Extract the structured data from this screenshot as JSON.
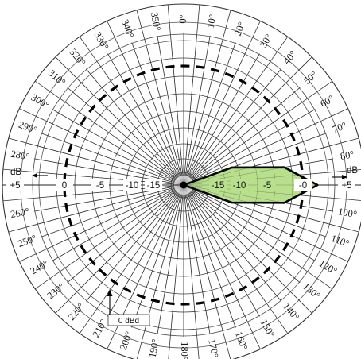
{
  "chart_data": {
    "type": "polar",
    "angle_ticks_deg": [
      0,
      10,
      20,
      30,
      40,
      50,
      60,
      70,
      80,
      90,
      100,
      110,
      120,
      130,
      140,
      150,
      160,
      170,
      180,
      190,
      200,
      210,
      220,
      230,
      240,
      250,
      260,
      270,
      280,
      290,
      300,
      310,
      320,
      330,
      340,
      350
    ],
    "angle_tick_labels": {
      "0": "0°",
      "10": "10°",
      "20": "20°",
      "30": "30°",
      "40": "40°",
      "50": "50°",
      "60": "60°",
      "70": "70°",
      "80": "80°",
      "100": "100°",
      "110": "110°",
      "120": "120°",
      "130": "130°",
      "140": "140°",
      "150": "150°",
      "160": "160°",
      "170": "170°",
      "180": "180°",
      "190": "190°",
      "200": "200°",
      "210": "210°",
      "220": "220°",
      "230": "230°",
      "240": "240°",
      "250": "250°",
      "260": "260°",
      "280": "280°",
      "290": "290°",
      "300": "300°",
      "310": "310°",
      "320": "320°",
      "330": "330°",
      "340": "340°",
      "350": "350°"
    },
    "radial_unit": "dB",
    "radial_range_db": [
      -20,
      5
    ],
    "radial_ticks_db": [
      5,
      0,
      -5,
      -10,
      -15
    ],
    "radial_tick_labels_left": [
      "+5",
      "0",
      "-5",
      "-10",
      "-15"
    ],
    "radial_tick_labels_right": [
      "-15",
      "-10",
      "-5",
      "-0",
      "+5"
    ],
    "reference_ring": {
      "db": 0,
      "label": "0 dBd",
      "style": "dashed"
    },
    "axis_unit_labels": {
      "left": "dB",
      "right": "dB"
    },
    "fill_color": "#b8e08c",
    "pattern_db": [
      [
        0,
        -20
      ],
      [
        10,
        -19
      ],
      [
        20,
        -17.8
      ],
      [
        30,
        -15.7
      ],
      [
        40,
        -12.9
      ],
      [
        50,
        -9.7
      ],
      [
        60,
        -6.2
      ],
      [
        70,
        -2.8
      ],
      [
        80,
        -0.7
      ],
      [
        90,
        0.6
      ],
      [
        100,
        -0.7
      ],
      [
        110,
        -2.8
      ],
      [
        120,
        -6.2
      ],
      [
        130,
        -9.7
      ],
      [
        140,
        -12.9
      ],
      [
        150,
        -15.7
      ],
      [
        160,
        -17.8
      ],
      [
        170,
        -19
      ],
      [
        180,
        -20
      ],
      [
        185,
        -19.5
      ],
      [
        190,
        -17.8
      ],
      [
        195,
        -15.2
      ],
      [
        200,
        -14.8
      ],
      [
        205,
        -17.5
      ],
      [
        210,
        -20
      ],
      [
        240,
        -20
      ],
      [
        250,
        -17.5
      ],
      [
        255,
        -15.4
      ],
      [
        260,
        -14.5
      ],
      [
        265,
        -14
      ],
      [
        268,
        -13.8
      ],
      [
        272,
        -14.3
      ],
      [
        276,
        -16
      ],
      [
        280,
        -19
      ],
      [
        284,
        -20
      ],
      [
        330,
        -20
      ],
      [
        335,
        -17.2
      ],
      [
        340,
        -15.3
      ],
      [
        345,
        -16.5
      ],
      [
        350,
        -18.8
      ],
      [
        355,
        -20
      ],
      [
        360,
        -20
      ]
    ]
  }
}
